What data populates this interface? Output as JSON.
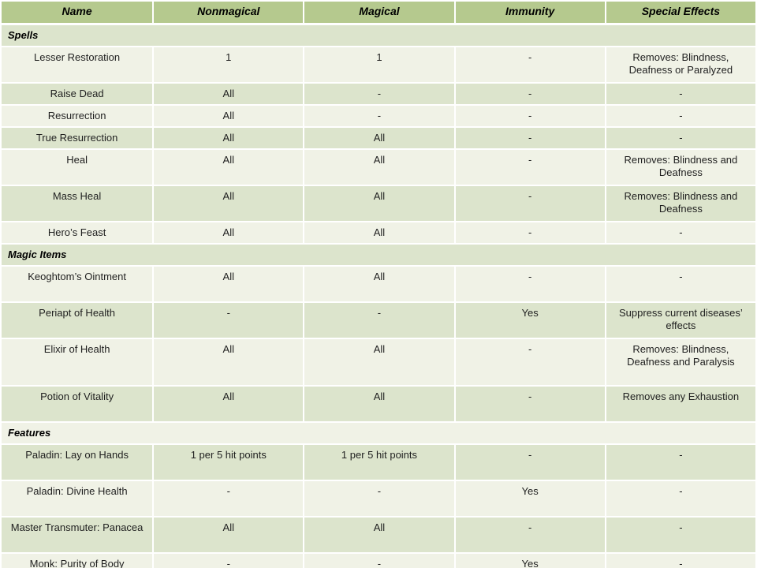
{
  "colors": {
    "header_bg": "#b5c98e",
    "band_dark": "#dce4cc",
    "band_light": "#f0f2e6",
    "grid": "#ffffff",
    "text": "#1f1f1f"
  },
  "table": {
    "columns": [
      {
        "label": "Name"
      },
      {
        "label": "Nonmagical"
      },
      {
        "label": "Magical"
      },
      {
        "label": "Immunity"
      },
      {
        "label": "Special Effects"
      }
    ],
    "rows": [
      {
        "type": "section",
        "label": "Spells"
      },
      {
        "type": "data",
        "cells": [
          "Lesser Restoration",
          "1",
          "1",
          "-",
          "Removes: Blindness, Deafness or Paralyzed"
        ]
      },
      {
        "type": "data",
        "cells": [
          "Raise Dead",
          "All",
          "-",
          "-",
          "-"
        ]
      },
      {
        "type": "data",
        "cells": [
          "Resurrection",
          "All",
          "-",
          "-",
          "-"
        ]
      },
      {
        "type": "data",
        "cells": [
          "True Resurrection",
          "All",
          "All",
          "-",
          "-"
        ]
      },
      {
        "type": "data",
        "cells": [
          "Heal",
          "All",
          "All",
          "-",
          "Removes: Blindness and Deafness"
        ]
      },
      {
        "type": "data",
        "cells": [
          "Mass Heal",
          "All",
          "All",
          "-",
          "Removes: Blindness and Deafness"
        ]
      },
      {
        "type": "data",
        "cells": [
          "Hero’s Feast",
          "All",
          "All",
          "-",
          "-"
        ]
      },
      {
        "type": "section",
        "label": "Magic Items"
      },
      {
        "type": "data",
        "cells": [
          "Keoghtom’s Ointment",
          "All",
          "All",
          "-",
          "-"
        ]
      },
      {
        "type": "data",
        "cells": [
          "Periapt of Health",
          "-",
          "-",
          "Yes",
          "Suppress current diseases’ effects"
        ]
      },
      {
        "type": "data",
        "cells": [
          "Elixir of Health",
          "All",
          "All",
          "-",
          "Removes: Blindness, Deafness and Paralysis"
        ]
      },
      {
        "type": "data",
        "cells": [
          "Potion of Vitality",
          "All",
          "All",
          "-",
          "Removes any Exhaustion"
        ]
      },
      {
        "type": "section",
        "label": "Features"
      },
      {
        "type": "data",
        "cells": [
          "Paladin: Lay on Hands",
          "1 per 5 hit points",
          "1 per 5 hit points",
          "-",
          "-"
        ]
      },
      {
        "type": "data",
        "cells": [
          "Paladin: Divine Health",
          "-",
          "-",
          "Yes",
          "-"
        ]
      },
      {
        "type": "data",
        "cells": [
          "Master Transmuter: Panacea",
          "All",
          "All",
          "-",
          "-"
        ]
      },
      {
        "type": "data",
        "cells": [
          "Monk: Purity of Body",
          "-",
          "-",
          "Yes",
          "-"
        ]
      }
    ]
  }
}
